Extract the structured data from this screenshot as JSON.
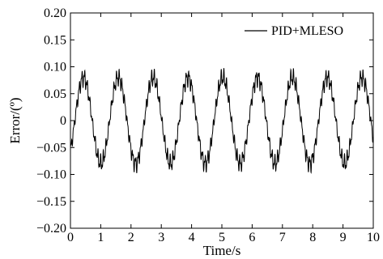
{
  "chart_data": {
    "type": "line",
    "title": "",
    "xlabel": "Time/s",
    "ylabel": "Error/(º)",
    "xlim": [
      0,
      10
    ],
    "ylim": [
      -0.2,
      0.2
    ],
    "xticks": [
      0,
      1,
      2,
      3,
      4,
      5,
      6,
      7,
      8,
      9,
      10
    ],
    "xtick_labels": [
      "0",
      "1",
      "2",
      "3",
      "4",
      "5",
      "6",
      "7",
      "8",
      "9",
      "10"
    ],
    "yticks": [
      0.2,
      0.15,
      0.1,
      0.05,
      0,
      -0.05,
      -0.1,
      -0.15,
      -0.2
    ],
    "ytick_labels": [
      "0.20",
      "0.15",
      "0.10",
      "0.05",
      "0",
      "−0.05",
      "−0.10",
      "−0.15",
      "−0.20"
    ],
    "legend": {
      "position": "top-right"
    },
    "grid": false,
    "series": [
      {
        "name": "PID+MLESO",
        "color": "#000000",
        "period_s": 1.15,
        "amplitude": 0.08,
        "ripple_amplitude": 0.012,
        "peaks": [
          0.43,
          1.58,
          2.73,
          3.88,
          5.03,
          6.18,
          7.33,
          8.48,
          9.63
        ],
        "troughs": [
          1.0,
          2.15,
          3.3,
          4.45,
          5.6,
          6.75,
          7.9,
          9.05,
          10.2
        ]
      }
    ]
  }
}
